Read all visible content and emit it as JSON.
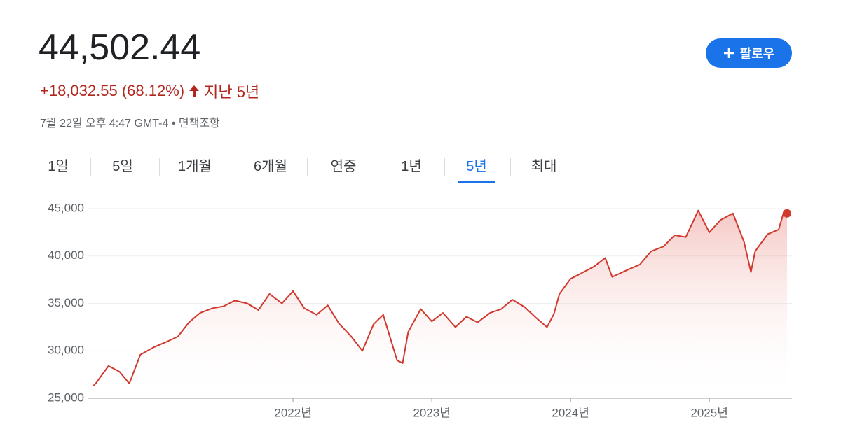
{
  "header": {
    "price": "44,502.44",
    "change": "+18,032.55 (68.12%)",
    "period": "지난 5년",
    "timestamp": "7월 22일 오후 4:47 GMT-4 • 면책조항",
    "follow_button": "팔로우"
  },
  "tabs": [
    "1일",
    "5일",
    "1개월",
    "6개월",
    "연중",
    "1년",
    "5년",
    "최대"
  ],
  "active_tab_index": 6,
  "chart_data": {
    "type": "line",
    "color": "#d1392e",
    "grid": true,
    "x": [
      2020.56,
      2020.58,
      2020.67,
      2020.75,
      2020.82,
      2020.9,
      2021.0,
      2021.08,
      2021.17,
      2021.25,
      2021.33,
      2021.42,
      2021.5,
      2021.58,
      2021.67,
      2021.75,
      2021.83,
      2021.92,
      2022.0,
      2022.08,
      2022.17,
      2022.25,
      2022.33,
      2022.42,
      2022.5,
      2022.58,
      2022.65,
      2022.75,
      2022.79,
      2022.83,
      2022.92,
      2023.0,
      2023.08,
      2023.17,
      2023.25,
      2023.33,
      2023.42,
      2023.5,
      2023.58,
      2023.67,
      2023.75,
      2023.83,
      2023.88,
      2023.92,
      2024.0,
      2024.08,
      2024.17,
      2024.25,
      2024.3,
      2024.42,
      2024.5,
      2024.58,
      2024.67,
      2024.75,
      2024.83,
      2024.92,
      2025.0,
      2025.08,
      2025.17,
      2025.25,
      2025.3,
      2025.33,
      2025.42,
      2025.5,
      2025.54,
      2025.56
    ],
    "values": [
      26300,
      26600,
      28400,
      27800,
      26550,
      29600,
      30400,
      30900,
      31500,
      33000,
      34000,
      34500,
      34700,
      35300,
      35000,
      34300,
      36000,
      35000,
      36300,
      34500,
      33800,
      34800,
      32900,
      31500,
      30000,
      32800,
      33800,
      29000,
      28700,
      32000,
      34400,
      33100,
      34000,
      32500,
      33600,
      33000,
      34000,
      34400,
      35400,
      34600,
      33500,
      32500,
      33900,
      36000,
      37600,
      38200,
      38900,
      39800,
      37800,
      38600,
      39100,
      40500,
      41000,
      42200,
      42000,
      44800,
      42500,
      43800,
      44500,
      41500,
      38300,
      40500,
      42300,
      42800,
      44800,
      44502.44
    ],
    "xlim": [
      2020.56,
      2025.56
    ],
    "ylim": [
      25000,
      45000
    ],
    "xticks": [
      {
        "value": 2022,
        "label": "2022년"
      },
      {
        "value": 2023,
        "label": "2023년"
      },
      {
        "value": 2024,
        "label": "2024년"
      },
      {
        "value": 2025,
        "label": "2025년"
      }
    ],
    "yticks": [
      {
        "value": 25000,
        "label": "25,000"
      },
      {
        "value": 30000,
        "label": "30,000"
      },
      {
        "value": 35000,
        "label": "35,000"
      },
      {
        "value": 40000,
        "label": "40,000"
      },
      {
        "value": 45000,
        "label": "45,000"
      }
    ]
  }
}
